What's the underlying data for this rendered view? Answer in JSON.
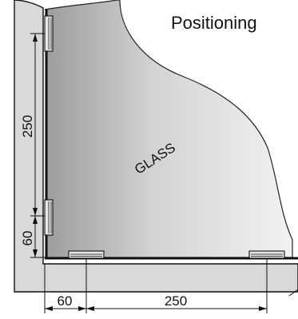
{
  "title": "Positioning",
  "glass_label": "GLASS",
  "dimensions": {
    "vertical_hinge_spacing": "250",
    "vertical_bottom_offset": "60",
    "horizontal_side_offset": "60",
    "horizontal_pivot_spacing": "250"
  },
  "colors": {
    "wall_fill": "#d9d9d9",
    "glass_light": "#f4f4f4",
    "glass_dark": "#a8a8a8",
    "line": "#111111"
  }
}
